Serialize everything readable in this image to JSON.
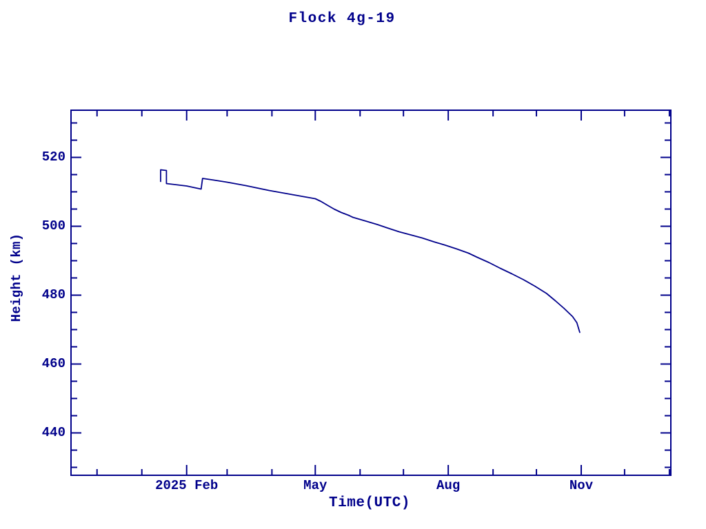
{
  "window": {
    "background_color": "#ffffff"
  },
  "chart_data": {
    "type": "line",
    "title": "Flock 4g-19",
    "xlabel": "Time(UTC)",
    "ylabel": "Height (km)",
    "accent_color": "#00008B",
    "grid": false,
    "legend": null,
    "x_type": "date",
    "xlim": [
      "2024-11-13",
      "2026-01-02"
    ],
    "ylim": [
      427.7,
      533.7
    ],
    "y_major_ticks": [
      440,
      460,
      480,
      500,
      520
    ],
    "y_minor_step": 5,
    "x_major_ticks": [
      {
        "date": "2025-02-01",
        "label": "2025 Feb"
      },
      {
        "date": "2025-05-01",
        "label": "May"
      },
      {
        "date": "2025-08-01",
        "label": "Aug"
      },
      {
        "date": "2025-11-01",
        "label": "Nov"
      }
    ],
    "x_minor_ticks": [
      "2024-12-01",
      "2025-01-01",
      "2025-03-01",
      "2025-04-01",
      "2025-06-01",
      "2025-07-01",
      "2025-09-01",
      "2025-10-01",
      "2025-12-01",
      "2026-01-01"
    ],
    "series": [
      {
        "name": "height-km",
        "color": "#00008B",
        "points": [
          [
            "2025-01-14",
            513.0
          ],
          [
            "2025-01-14",
            516.4
          ],
          [
            "2025-01-18",
            516.2
          ],
          [
            "2025-01-18",
            512.4
          ],
          [
            "2025-01-26",
            512.0
          ],
          [
            "2025-02-01",
            511.7
          ],
          [
            "2025-02-11",
            510.8
          ],
          [
            "2025-02-12",
            513.9
          ],
          [
            "2025-02-20",
            513.4
          ],
          [
            "2025-03-01",
            512.8
          ],
          [
            "2025-03-14",
            511.8
          ],
          [
            "2025-03-30",
            510.4
          ],
          [
            "2025-04-15",
            509.2
          ],
          [
            "2025-04-23",
            508.6
          ],
          [
            "2025-05-01",
            508.0
          ],
          [
            "2025-05-05",
            507.2
          ],
          [
            "2025-05-09",
            506.2
          ],
          [
            "2025-05-14",
            505.0
          ],
          [
            "2025-05-19",
            504.0
          ],
          [
            "2025-05-24",
            503.2
          ],
          [
            "2025-05-27",
            502.6
          ],
          [
            "2025-06-05",
            501.5
          ],
          [
            "2025-06-13",
            500.5
          ],
          [
            "2025-06-20",
            499.5
          ],
          [
            "2025-06-28",
            498.4
          ],
          [
            "2025-07-06",
            497.5
          ],
          [
            "2025-07-14",
            496.6
          ],
          [
            "2025-07-22",
            495.5
          ],
          [
            "2025-07-30",
            494.5
          ],
          [
            "2025-08-07",
            493.4
          ],
          [
            "2025-08-15",
            492.2
          ],
          [
            "2025-08-21",
            491.0
          ],
          [
            "2025-08-29",
            489.5
          ],
          [
            "2025-09-06",
            487.8
          ],
          [
            "2025-09-14",
            486.2
          ],
          [
            "2025-09-22",
            484.5
          ],
          [
            "2025-09-30",
            482.6
          ],
          [
            "2025-10-08",
            480.5
          ],
          [
            "2025-10-14",
            478.4
          ],
          [
            "2025-10-20",
            476.2
          ],
          [
            "2025-10-26",
            473.8
          ],
          [
            "2025-10-29",
            472.0
          ],
          [
            "2025-10-31",
            469.2
          ]
        ]
      }
    ],
    "plot_style": {
      "axis_color": "#00008B",
      "axis_line_width": 2,
      "data_line_width": 1.8,
      "major_tick_len": 15,
      "minor_tick_len": 9,
      "ticks_inward_all_sides": true
    }
  }
}
